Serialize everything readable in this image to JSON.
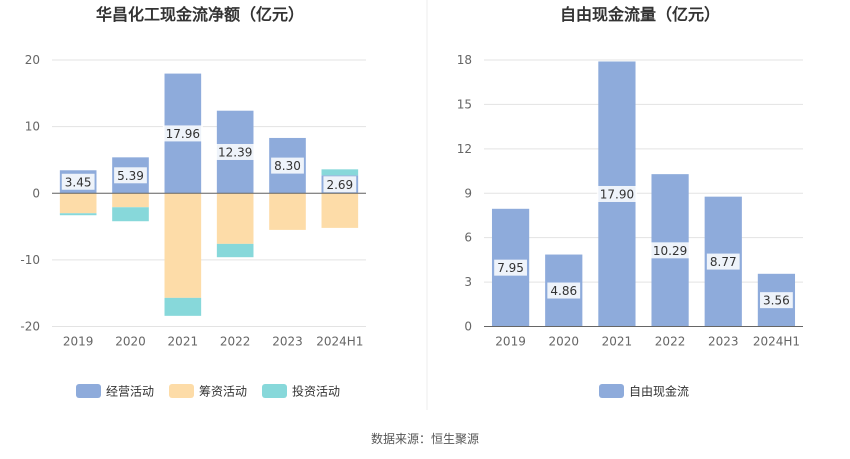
{
  "source": "数据来源：恒生聚源",
  "chart_data": [
    {
      "type": "bar",
      "stacked": true,
      "title": "华昌化工现金流净额（亿元）",
      "categories": [
        "2019",
        "2020",
        "2021",
        "2022",
        "2023",
        "2024H1"
      ],
      "ylim": [
        -20,
        20
      ],
      "yticks": [
        -20,
        -10,
        0,
        10,
        20
      ],
      "grid": true,
      "legend_position": "bottom",
      "series": [
        {
          "name": "经营活动",
          "color": "#8eabdb",
          "values": [
            3.45,
            5.39,
            17.96,
            12.39,
            8.3,
            2.69
          ],
          "labels": [
            "3.45",
            "5.39",
            "17.96",
            "12.39",
            "8.30",
            "2.69"
          ]
        },
        {
          "name": "筹资活动",
          "color": "#fddca8",
          "values": [
            -3.0,
            -2.1,
            -15.7,
            -7.6,
            -5.5,
            -5.2
          ]
        },
        {
          "name": "投资活动",
          "color": "#87d8da",
          "values": [
            -0.3,
            -2.1,
            -2.7,
            -2.0,
            0.0,
            0.9
          ]
        }
      ]
    },
    {
      "type": "bar",
      "title": "自由现金流量（亿元）",
      "categories": [
        "2019",
        "2020",
        "2021",
        "2022",
        "2023",
        "2024H1"
      ],
      "ylim": [
        0,
        18
      ],
      "yticks": [
        0,
        3,
        6,
        9,
        12,
        15,
        18
      ],
      "grid": true,
      "legend_position": "bottom",
      "series": [
        {
          "name": "自由现金流",
          "color": "#8eabdb",
          "values": [
            7.95,
            4.86,
            17.9,
            10.29,
            8.77,
            3.56
          ],
          "labels": [
            "7.95",
            "4.86",
            "17.90",
            "10.29",
            "8.77",
            "3.56"
          ]
        }
      ]
    }
  ]
}
